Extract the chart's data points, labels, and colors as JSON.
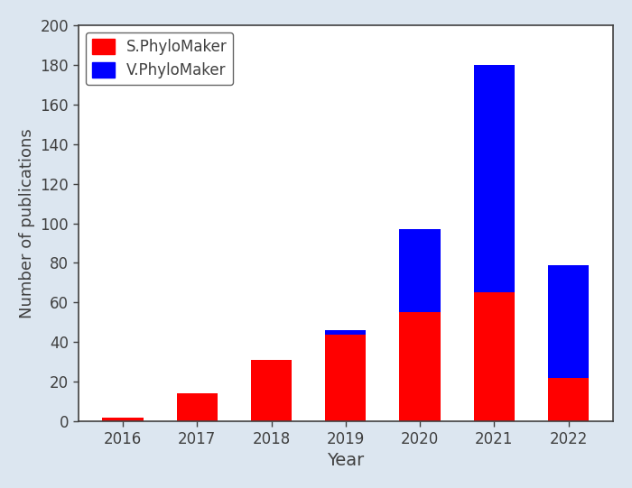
{
  "years": [
    "2016",
    "2017",
    "2018",
    "2019",
    "2020",
    "2021",
    "2022"
  ],
  "s_phylomaker": [
    2,
    14,
    31,
    44,
    55,
    65,
    22
  ],
  "v_phylomaker": [
    0,
    0,
    0,
    2,
    42,
    115,
    57
  ],
  "s_color": "#ff0000",
  "v_color": "#0000ff",
  "ylabel": "Number of publications",
  "xlabel": "Year",
  "ylim": [
    0,
    200
  ],
  "yticks": [
    0,
    20,
    40,
    60,
    80,
    100,
    120,
    140,
    160,
    180,
    200
  ],
  "legend_s": "S.PhyloMaker",
  "legend_v": "V.PhyloMaker",
  "bar_width": 0.55,
  "background_color": "#ffffff",
  "outer_bg": "#dce6f0",
  "spine_color": "#404040",
  "label_color": "#404040",
  "tick_color": "#404040",
  "legend_text_color": "#404040"
}
